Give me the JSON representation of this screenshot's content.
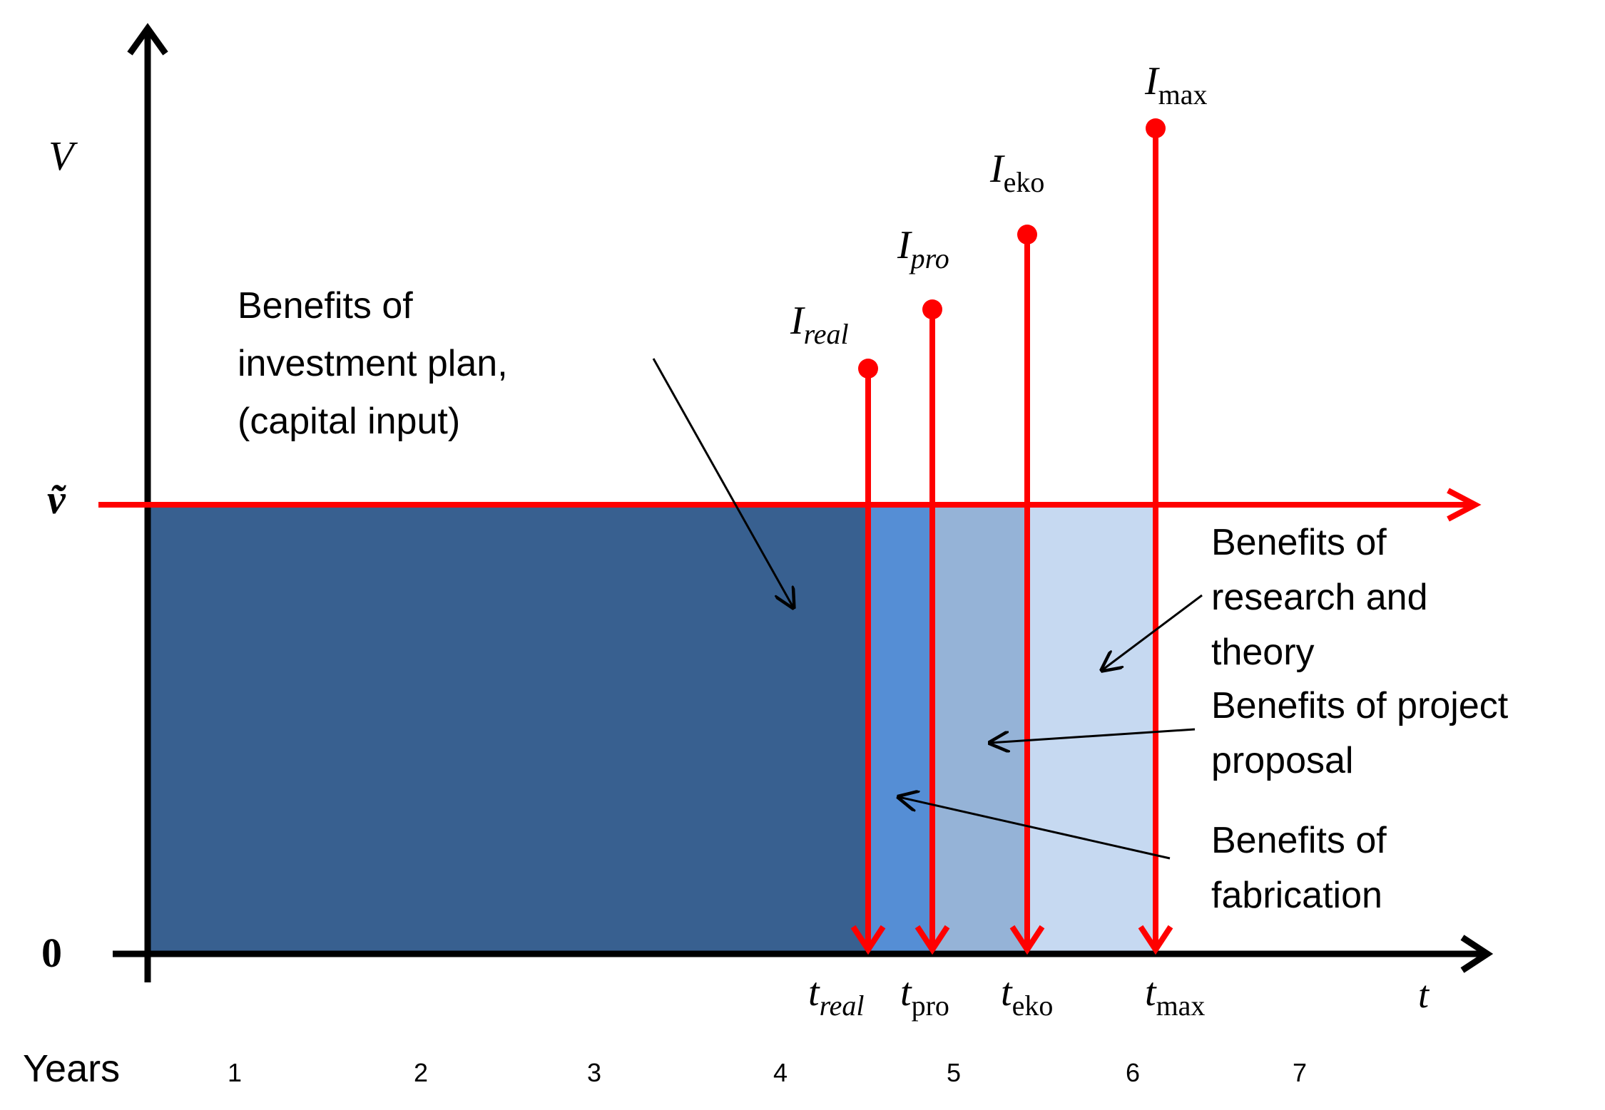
{
  "axes": {
    "y_label": "V",
    "x_label": "t",
    "origin_label": "0",
    "level_label": "ṽ",
    "years_label": "Years",
    "year_ticks": [
      "1",
      "2",
      "3",
      "4",
      "5",
      "6",
      "7"
    ]
  },
  "regions": [
    {
      "id": "investment",
      "color": "#386090"
    },
    {
      "id": "fabrication",
      "color": "#558ed5"
    },
    {
      "id": "proposal",
      "color": "#95b3d7"
    },
    {
      "id": "research",
      "color": "#c6d9f1"
    }
  ],
  "milestones": [
    {
      "id": "real",
      "value_label": "I",
      "value_sub": "real",
      "value_sub_italic": true,
      "time_label": "t",
      "time_sub": "real",
      "time_sub_italic": true
    },
    {
      "id": "pro",
      "value_label": "I",
      "value_sub": "pro",
      "value_sub_italic": true,
      "time_label": "t",
      "time_sub": "pro",
      "time_sub_italic": false
    },
    {
      "id": "eko",
      "value_label": "I",
      "value_sub": "eko",
      "value_sub_italic": false,
      "time_label": "t",
      "time_sub": "eko",
      "time_sub_italic": false
    },
    {
      "id": "max",
      "value_label": "I",
      "value_sub": "max",
      "value_sub_italic": false,
      "time_label": "t",
      "time_sub": "max",
      "time_sub_italic": false
    }
  ],
  "annotations": {
    "investment": [
      "Benefits of",
      "investment  plan,",
      "(capital input)"
    ],
    "research": [
      "Benefits of",
      "research and",
      "theory"
    ],
    "proposal": [
      "Benefits of project",
      "proposal"
    ],
    "fabrication": [
      "Benefits of",
      "fabrication"
    ]
  },
  "colors": {
    "axis": "#000000",
    "milestone": "#ff0000"
  }
}
